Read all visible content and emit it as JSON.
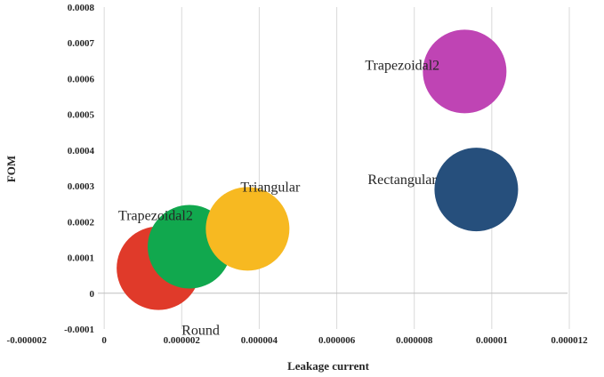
{
  "chart_data": {
    "type": "scatter",
    "subtype": "bubble",
    "title": "",
    "xlabel": "Leakage current",
    "ylabel": "FOM",
    "xlim": [
      -2e-06,
      1.2e-05
    ],
    "ylim": [
      -0.0001,
      0.0008
    ],
    "x_ticks": [
      "-0.000002",
      "0",
      "0.000002",
      "0.000004",
      "0.000006",
      "0.000008",
      "0.00001",
      "0.000012"
    ],
    "y_ticks": [
      "-0.0001",
      "0",
      "0.0001",
      "0.0002",
      "0.0003",
      "0.0004",
      "0.0005",
      "0.0006",
      "0.0007",
      "0.0008"
    ],
    "grid": "vertical",
    "points": [
      {
        "label": "Round",
        "x": 1.4e-06,
        "y": 7e-05,
        "color": "#e03a2a"
      },
      {
        "label": "Trapezoidal2",
        "x": 2.2e-06,
        "y": 0.00013,
        "color": "#11a84e"
      },
      {
        "label": "Triangular",
        "x": 3.7e-06,
        "y": 0.00018,
        "color": "#f7b921"
      },
      {
        "label": "Rectangular",
        "x": 9.6e-06,
        "y": 0.00029,
        "color": "#264f7c"
      },
      {
        "label": "Trapezoidal2",
        "x": 9.3e-06,
        "y": 0.00062,
        "color": "#bf44b4"
      }
    ]
  }
}
